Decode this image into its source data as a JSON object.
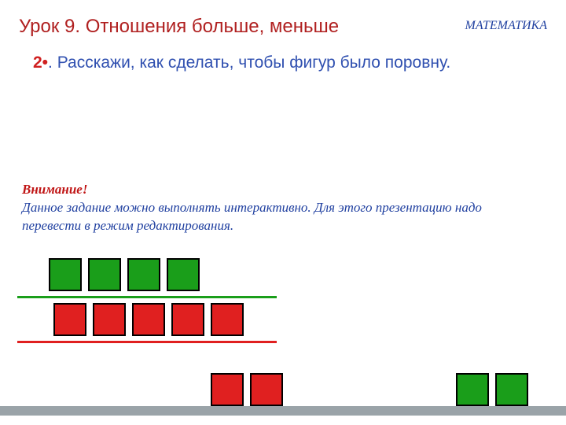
{
  "header": {
    "lesson_title": "Урок 9. Отношения больше, меньше",
    "subject": "МАТЕМАТИКА"
  },
  "task": {
    "number": "2•",
    "separator": ". ",
    "text": "Расскажи, как сделать, чтобы фигур было поровну."
  },
  "attention": {
    "title": "Внимание!",
    "text": "Данное задание можно выполнять интерактивно. Для этого презентацию надо перевести в режим редактирования."
  },
  "shapes": {
    "top_row": {
      "count": 4,
      "color": "#1a9e1a",
      "border": "#000000",
      "size": 42
    },
    "divider_top": {
      "color": "#1a9e1a",
      "thickness": 3
    },
    "middle_row": {
      "count": 5,
      "color": "#e02020",
      "border": "#000000",
      "size": 42
    },
    "divider_bottom": {
      "color": "#e02020",
      "thickness": 3
    },
    "extra_red": {
      "count": 2,
      "color": "#e02020",
      "size": 42
    },
    "extra_green": {
      "count": 2,
      "color": "#1a9e1a",
      "size": 42
    }
  },
  "strip_color": "#9aa3a8",
  "background": "#ffffff"
}
